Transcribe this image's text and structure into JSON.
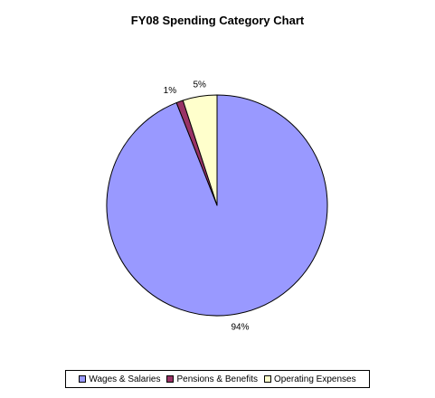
{
  "chart_data": {
    "type": "pie",
    "title": "FY08 Spending Category Chart",
    "slices": [
      {
        "name": "Wages & Salaries",
        "value": 94,
        "label": "94%",
        "color": "#9999FF"
      },
      {
        "name": "Pensions & Benefits",
        "value": 1,
        "label": "1%",
        "color": "#993366"
      },
      {
        "name": "Operating Expenses",
        "value": 5,
        "label": "5%",
        "color": "#FFFFCC"
      }
    ],
    "legend_position": "bottom",
    "start_angle": "12 o'clock",
    "direction": "clockwise"
  }
}
